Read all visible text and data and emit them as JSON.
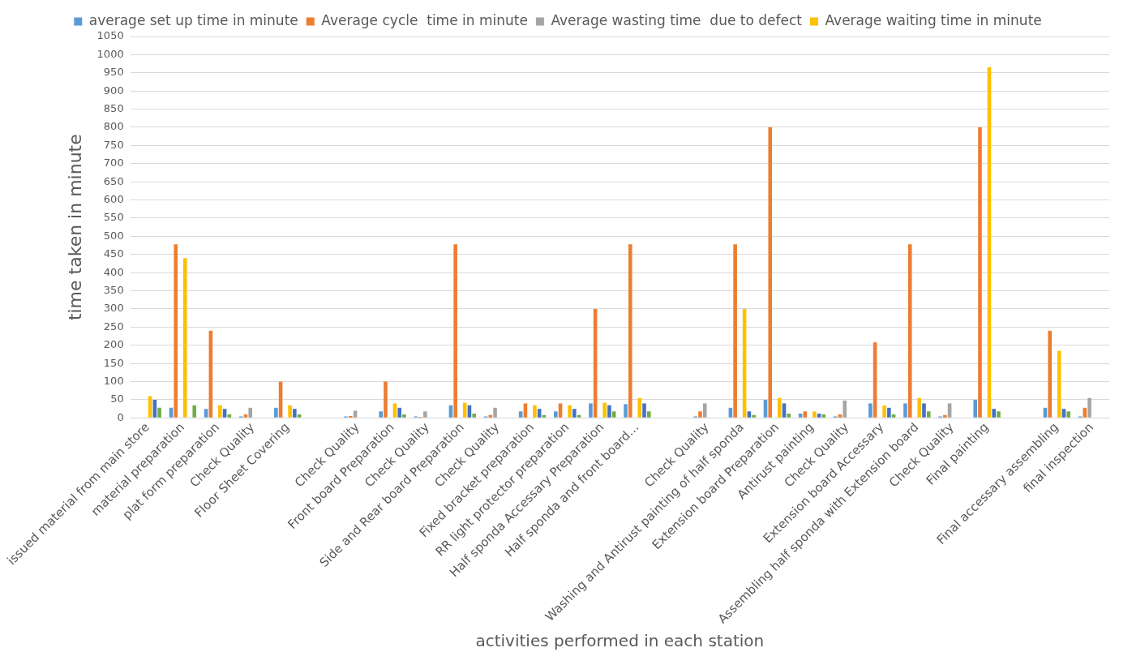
{
  "chart_data": {
    "type": "bar",
    "xlabel": "activities performed in each station",
    "ylabel": "time taken in minute",
    "categories": [
      "issued material from main store",
      "material preparation",
      "plat form preparation",
      "Check Quality",
      "Floor Sheet Covering",
      null,
      "Check Quality",
      "Front board Preparation",
      "Check Quality",
      "Side and Rear board Preparation",
      "Check Quality",
      "Fixed bracket preparation",
      "RR light protector preparation",
      "Half sponda Accessary Preparation",
      "Half sponda and front board…",
      null,
      "Check Quality",
      "Washing and Antirust painting of half sponda",
      "Extension board Preparation",
      "Antirust painting",
      "Check Quality",
      "Extension board Accessary",
      "Assembling half sponda with Extension board",
      "Check Quality",
      "Final painting",
      null,
      "Final accessary assembling",
      "final inspection"
    ],
    "series": [
      {
        "name": "average set up time in minute",
        "color": "#5b9bd5",
        "values": [
          0,
          28,
          25,
          4,
          28,
          null,
          4,
          18,
          4,
          35,
          4,
          18,
          18,
          40,
          38,
          null,
          4,
          28,
          50,
          12,
          4,
          40,
          40,
          4,
          50,
          null,
          28,
          4
        ]
      },
      {
        "name": "Average cycle  time in minute",
        "color": "#ed7d31",
        "values": [
          0,
          478,
          240,
          10,
          100,
          null,
          5,
          100,
          3,
          478,
          8,
          40,
          40,
          300,
          478,
          null,
          18,
          478,
          800,
          18,
          10,
          208,
          478,
          8,
          800,
          null,
          240,
          28
        ]
      },
      {
        "name": "Average wasting time  due to defect",
        "color": "#a5a5a5",
        "values": [
          0,
          0,
          0,
          28,
          0,
          null,
          20,
          0,
          18,
          0,
          28,
          0,
          0,
          0,
          0,
          null,
          40,
          0,
          0,
          0,
          48,
          0,
          0,
          40,
          0,
          null,
          0,
          55
        ]
      },
      {
        "name": "Average waiting time in minute",
        "color": "#ffc000",
        "values": [
          60,
          440,
          35,
          0,
          35,
          null,
          0,
          40,
          0,
          42,
          0,
          35,
          35,
          42,
          55,
          null,
          0,
          300,
          55,
          18,
          0,
          34,
          55,
          0,
          965,
          null,
          185,
          0
        ]
      },
      {
        "color": "#4472c4",
        "values": [
          50,
          0,
          25,
          0,
          25,
          null,
          0,
          28,
          0,
          35,
          0,
          25,
          25,
          35,
          40,
          null,
          0,
          18,
          40,
          12,
          0,
          28,
          40,
          0,
          25,
          null,
          25,
          0
        ]
      },
      {
        "color": "#70ad47",
        "values": [
          28,
          35,
          10,
          0,
          10,
          null,
          0,
          10,
          0,
          12,
          0,
          8,
          8,
          18,
          18,
          null,
          0,
          8,
          12,
          10,
          0,
          10,
          18,
          0,
          18,
          null,
          18,
          0
        ]
      }
    ],
    "ylim": [
      0,
      1050
    ],
    "yticks": [
      0,
      50,
      100,
      150,
      200,
      250,
      300,
      350,
      400,
      450,
      500,
      550,
      600,
      650,
      700,
      750,
      800,
      850,
      900,
      950,
      1000,
      1050
    ],
    "grid": "y",
    "legend": "top"
  }
}
